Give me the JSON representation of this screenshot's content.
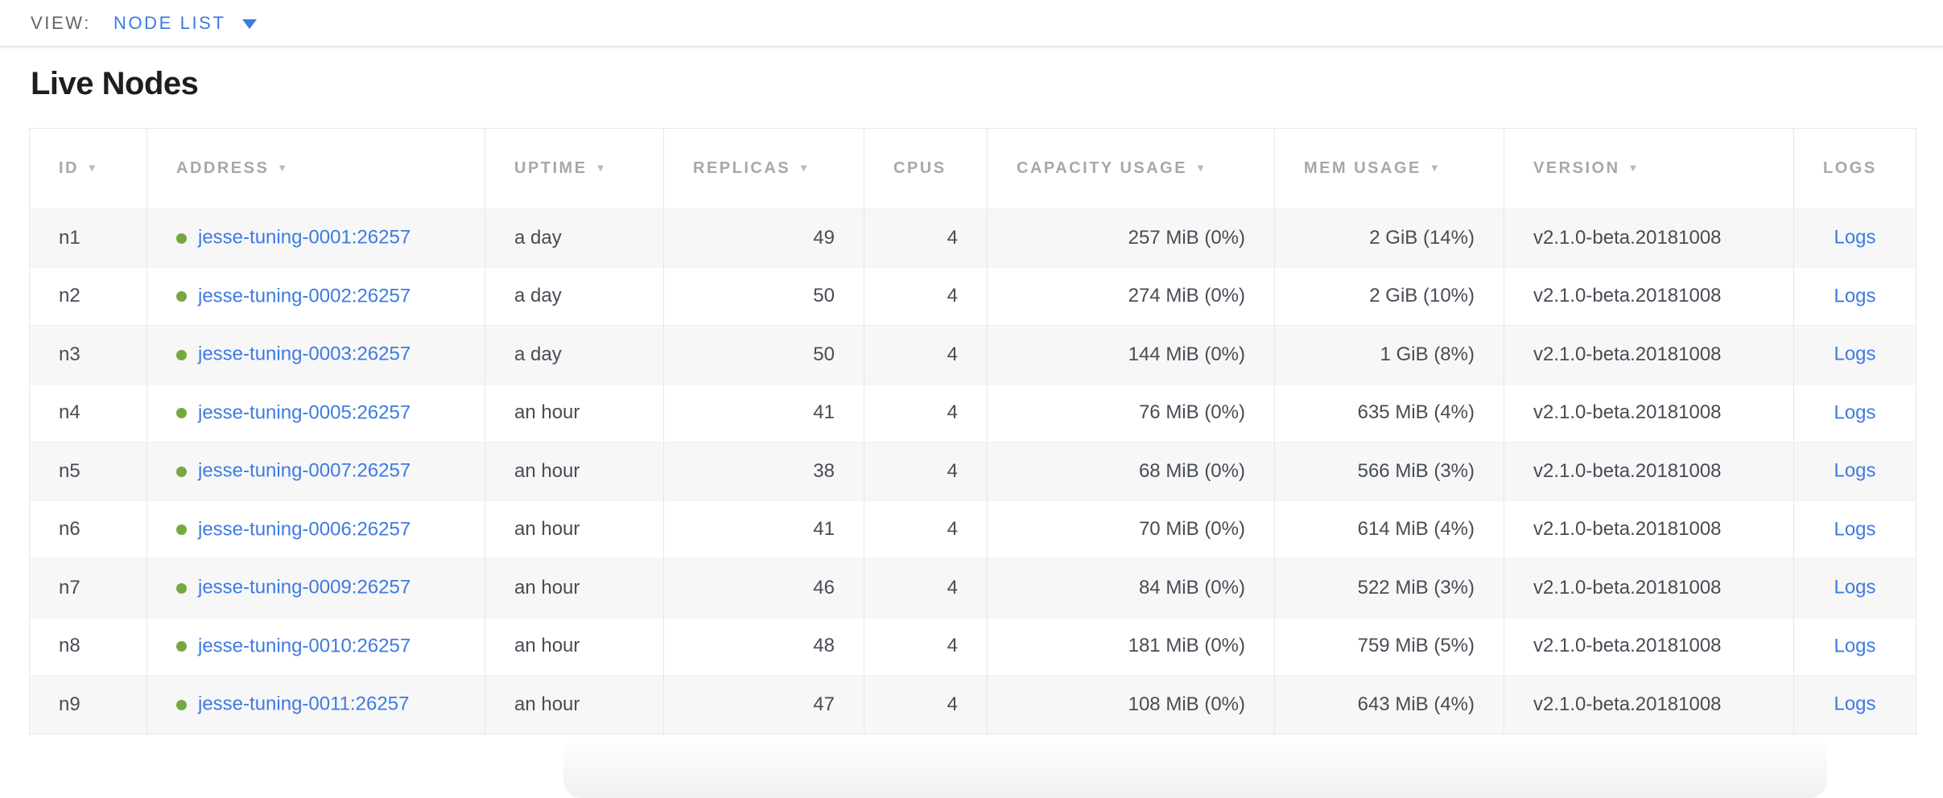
{
  "view_bar": {
    "label": "VIEW:",
    "selected": "NODE LIST"
  },
  "page": {
    "title": "Live Nodes"
  },
  "icons": {
    "sort_desc": "▼",
    "dropdown_caret": "▼"
  },
  "colors": {
    "link": "#3d7be0",
    "live_dot": "#77a73e",
    "header_text": "#a5a8ac",
    "body_text": "#474c54",
    "stripe": "#f7f7f8",
    "border": "#e7e7e9"
  },
  "table": {
    "columns": [
      {
        "key": "id",
        "label": "ID",
        "sortable": true,
        "align": "left"
      },
      {
        "key": "address",
        "label": "ADDRESS",
        "sortable": true,
        "align": "left"
      },
      {
        "key": "uptime",
        "label": "UPTIME",
        "sortable": true,
        "align": "left"
      },
      {
        "key": "replicas",
        "label": "REPLICAS",
        "sortable": true,
        "align": "right"
      },
      {
        "key": "cpus",
        "label": "CPUS",
        "sortable": false,
        "align": "right"
      },
      {
        "key": "capacity_usage",
        "label": "CAPACITY USAGE",
        "sortable": true,
        "align": "right"
      },
      {
        "key": "mem_usage",
        "label": "MEM USAGE",
        "sortable": true,
        "align": "right"
      },
      {
        "key": "version",
        "label": "VERSION",
        "sortable": true,
        "align": "left"
      },
      {
        "key": "logs",
        "label": "LOGS",
        "sortable": false,
        "align": "center"
      }
    ],
    "rows": [
      {
        "id": "n1",
        "status": "live",
        "address": "jesse-tuning-0001:26257",
        "uptime": "a day",
        "replicas": "49",
        "cpus": "4",
        "capacity_usage": "257 MiB (0%)",
        "mem_usage": "2 GiB (14%)",
        "version": "v2.1.0-beta.20181008",
        "logs": "Logs"
      },
      {
        "id": "n2",
        "status": "live",
        "address": "jesse-tuning-0002:26257",
        "uptime": "a day",
        "replicas": "50",
        "cpus": "4",
        "capacity_usage": "274 MiB (0%)",
        "mem_usage": "2 GiB (10%)",
        "version": "v2.1.0-beta.20181008",
        "logs": "Logs"
      },
      {
        "id": "n3",
        "status": "live",
        "address": "jesse-tuning-0003:26257",
        "uptime": "a day",
        "replicas": "50",
        "cpus": "4",
        "capacity_usage": "144 MiB (0%)",
        "mem_usage": "1 GiB (8%)",
        "version": "v2.1.0-beta.20181008",
        "logs": "Logs"
      },
      {
        "id": "n4",
        "status": "live",
        "address": "jesse-tuning-0005:26257",
        "uptime": "an hour",
        "replicas": "41",
        "cpus": "4",
        "capacity_usage": "76 MiB (0%)",
        "mem_usage": "635 MiB (4%)",
        "version": "v2.1.0-beta.20181008",
        "logs": "Logs"
      },
      {
        "id": "n5",
        "status": "live",
        "address": "jesse-tuning-0007:26257",
        "uptime": "an hour",
        "replicas": "38",
        "cpus": "4",
        "capacity_usage": "68 MiB (0%)",
        "mem_usage": "566 MiB (3%)",
        "version": "v2.1.0-beta.20181008",
        "logs": "Logs"
      },
      {
        "id": "n6",
        "status": "live",
        "address": "jesse-tuning-0006:26257",
        "uptime": "an hour",
        "replicas": "41",
        "cpus": "4",
        "capacity_usage": "70 MiB (0%)",
        "mem_usage": "614 MiB (4%)",
        "version": "v2.1.0-beta.20181008",
        "logs": "Logs"
      },
      {
        "id": "n7",
        "status": "live",
        "address": "jesse-tuning-0009:26257",
        "uptime": "an hour",
        "replicas": "46",
        "cpus": "4",
        "capacity_usage": "84 MiB (0%)",
        "mem_usage": "522 MiB (3%)",
        "version": "v2.1.0-beta.20181008",
        "logs": "Logs"
      },
      {
        "id": "n8",
        "status": "live",
        "address": "jesse-tuning-0010:26257",
        "uptime": "an hour",
        "replicas": "48",
        "cpus": "4",
        "capacity_usage": "181 MiB (0%)",
        "mem_usage": "759 MiB (5%)",
        "version": "v2.1.0-beta.20181008",
        "logs": "Logs"
      },
      {
        "id": "n9",
        "status": "live",
        "address": "jesse-tuning-0011:26257",
        "uptime": "an hour",
        "replicas": "47",
        "cpus": "4",
        "capacity_usage": "108 MiB (0%)",
        "mem_usage": "643 MiB (4%)",
        "version": "v2.1.0-beta.20181008",
        "logs": "Logs"
      }
    ]
  }
}
